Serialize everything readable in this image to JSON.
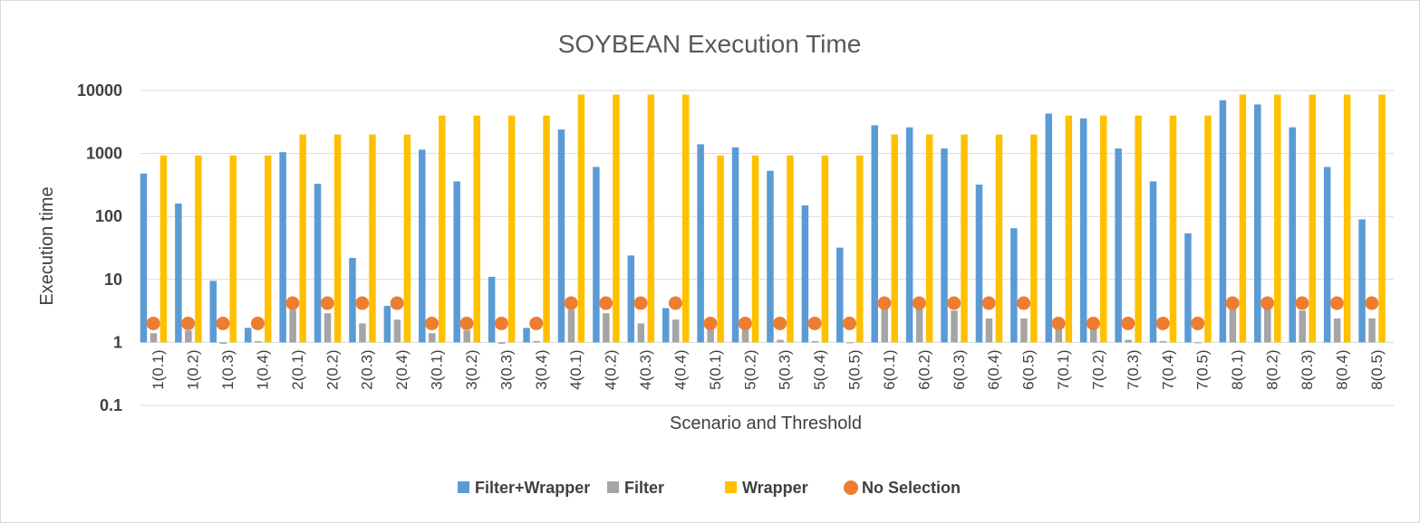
{
  "chart_data": {
    "type": "bar",
    "title": "SOYBEAN Execution Time",
    "xlabel": "Scenario and Threshold",
    "ylabel": "Execution time",
    "yscale": "log",
    "ylim": [
      0.1,
      10000
    ],
    "yticks": [
      "0.1",
      "1",
      "10",
      "100",
      "1000",
      "10000"
    ],
    "grid": true,
    "legend": "bottom",
    "categories": [
      "1(0.1)",
      "1(0.2)",
      "1(0.3)",
      "1(0.4)",
      "2(0.1)",
      "2(0.2)",
      "2(0.3)",
      "2(0.4)",
      "3(0.1)",
      "3(0.2)",
      "3(0.3)",
      "3(0.4)",
      "4(0.1)",
      "4(0.2)",
      "4(0.3)",
      "4(0.4)",
      "5(0.1)",
      "5(0.2)",
      "5(0.3)",
      "5(0.4)",
      "5(0.5)",
      "6(0.1)",
      "6(0.2)",
      "6(0.3)",
      "6(0.4)",
      "6(0.5)",
      "7(0.1)",
      "7(0.2)",
      "7(0.3)",
      "7(0.4)",
      "7(0.5)",
      "8(0.1)",
      "8(0.2)",
      "8(0.3)",
      "8(0.4)",
      "8(0.5)"
    ],
    "series": [
      {
        "name": "Filter+Wrapper",
        "kind": "bar",
        "color": "#5b9bd5",
        "values": [
          480,
          160,
          9.5,
          1.7,
          1050,
          330,
          22,
          3.8,
          1150,
          360,
          11,
          1.7,
          2400,
          610,
          24,
          3.5,
          1400,
          1250,
          530,
          150,
          32,
          2800,
          2600,
          1200,
          320,
          65,
          4300,
          3600,
          1200,
          360,
          54,
          7000,
          6000,
          2600,
          610,
          90
        ]
      },
      {
        "name": "Filter",
        "kind": "bar",
        "color": "#a5a5a5",
        "values": [
          1.4,
          1.55,
          0.95,
          1.05,
          3.3,
          2.9,
          2.0,
          2.3,
          1.4,
          1.55,
          0.95,
          1.05,
          3.3,
          2.9,
          2.0,
          2.3,
          1.6,
          1.6,
          1.1,
          1.05,
          1.0,
          3.4,
          3.4,
          3.2,
          2.4,
          2.4,
          1.7,
          1.65,
          1.1,
          1.05,
          1.0,
          3.4,
          3.4,
          3.2,
          2.4,
          2.4
        ]
      },
      {
        "name": "Wrapper",
        "kind": "bar",
        "color": "#ffc000",
        "values": [
          930,
          930,
          930,
          930,
          2000,
          2000,
          2000,
          2000,
          4000,
          4000,
          4000,
          4000,
          8600,
          8600,
          8600,
          8600,
          930,
          930,
          930,
          930,
          930,
          2000,
          2000,
          2000,
          2000,
          2000,
          4000,
          4000,
          4000,
          4000,
          4000,
          8600,
          8600,
          8600,
          8600,
          8600
        ]
      },
      {
        "name": "No Selection",
        "kind": "marker",
        "color": "#ed7d31",
        "values": [
          2,
          2,
          2,
          2,
          4.2,
          4.2,
          4.2,
          4.2,
          2,
          2,
          2,
          2,
          4.2,
          4.2,
          4.2,
          4.2,
          2,
          2,
          2,
          2,
          2,
          4.2,
          4.2,
          4.2,
          4.2,
          4.2,
          2,
          2,
          2,
          2,
          2,
          4.2,
          4.2,
          4.2,
          4.2,
          4.2
        ]
      }
    ]
  }
}
